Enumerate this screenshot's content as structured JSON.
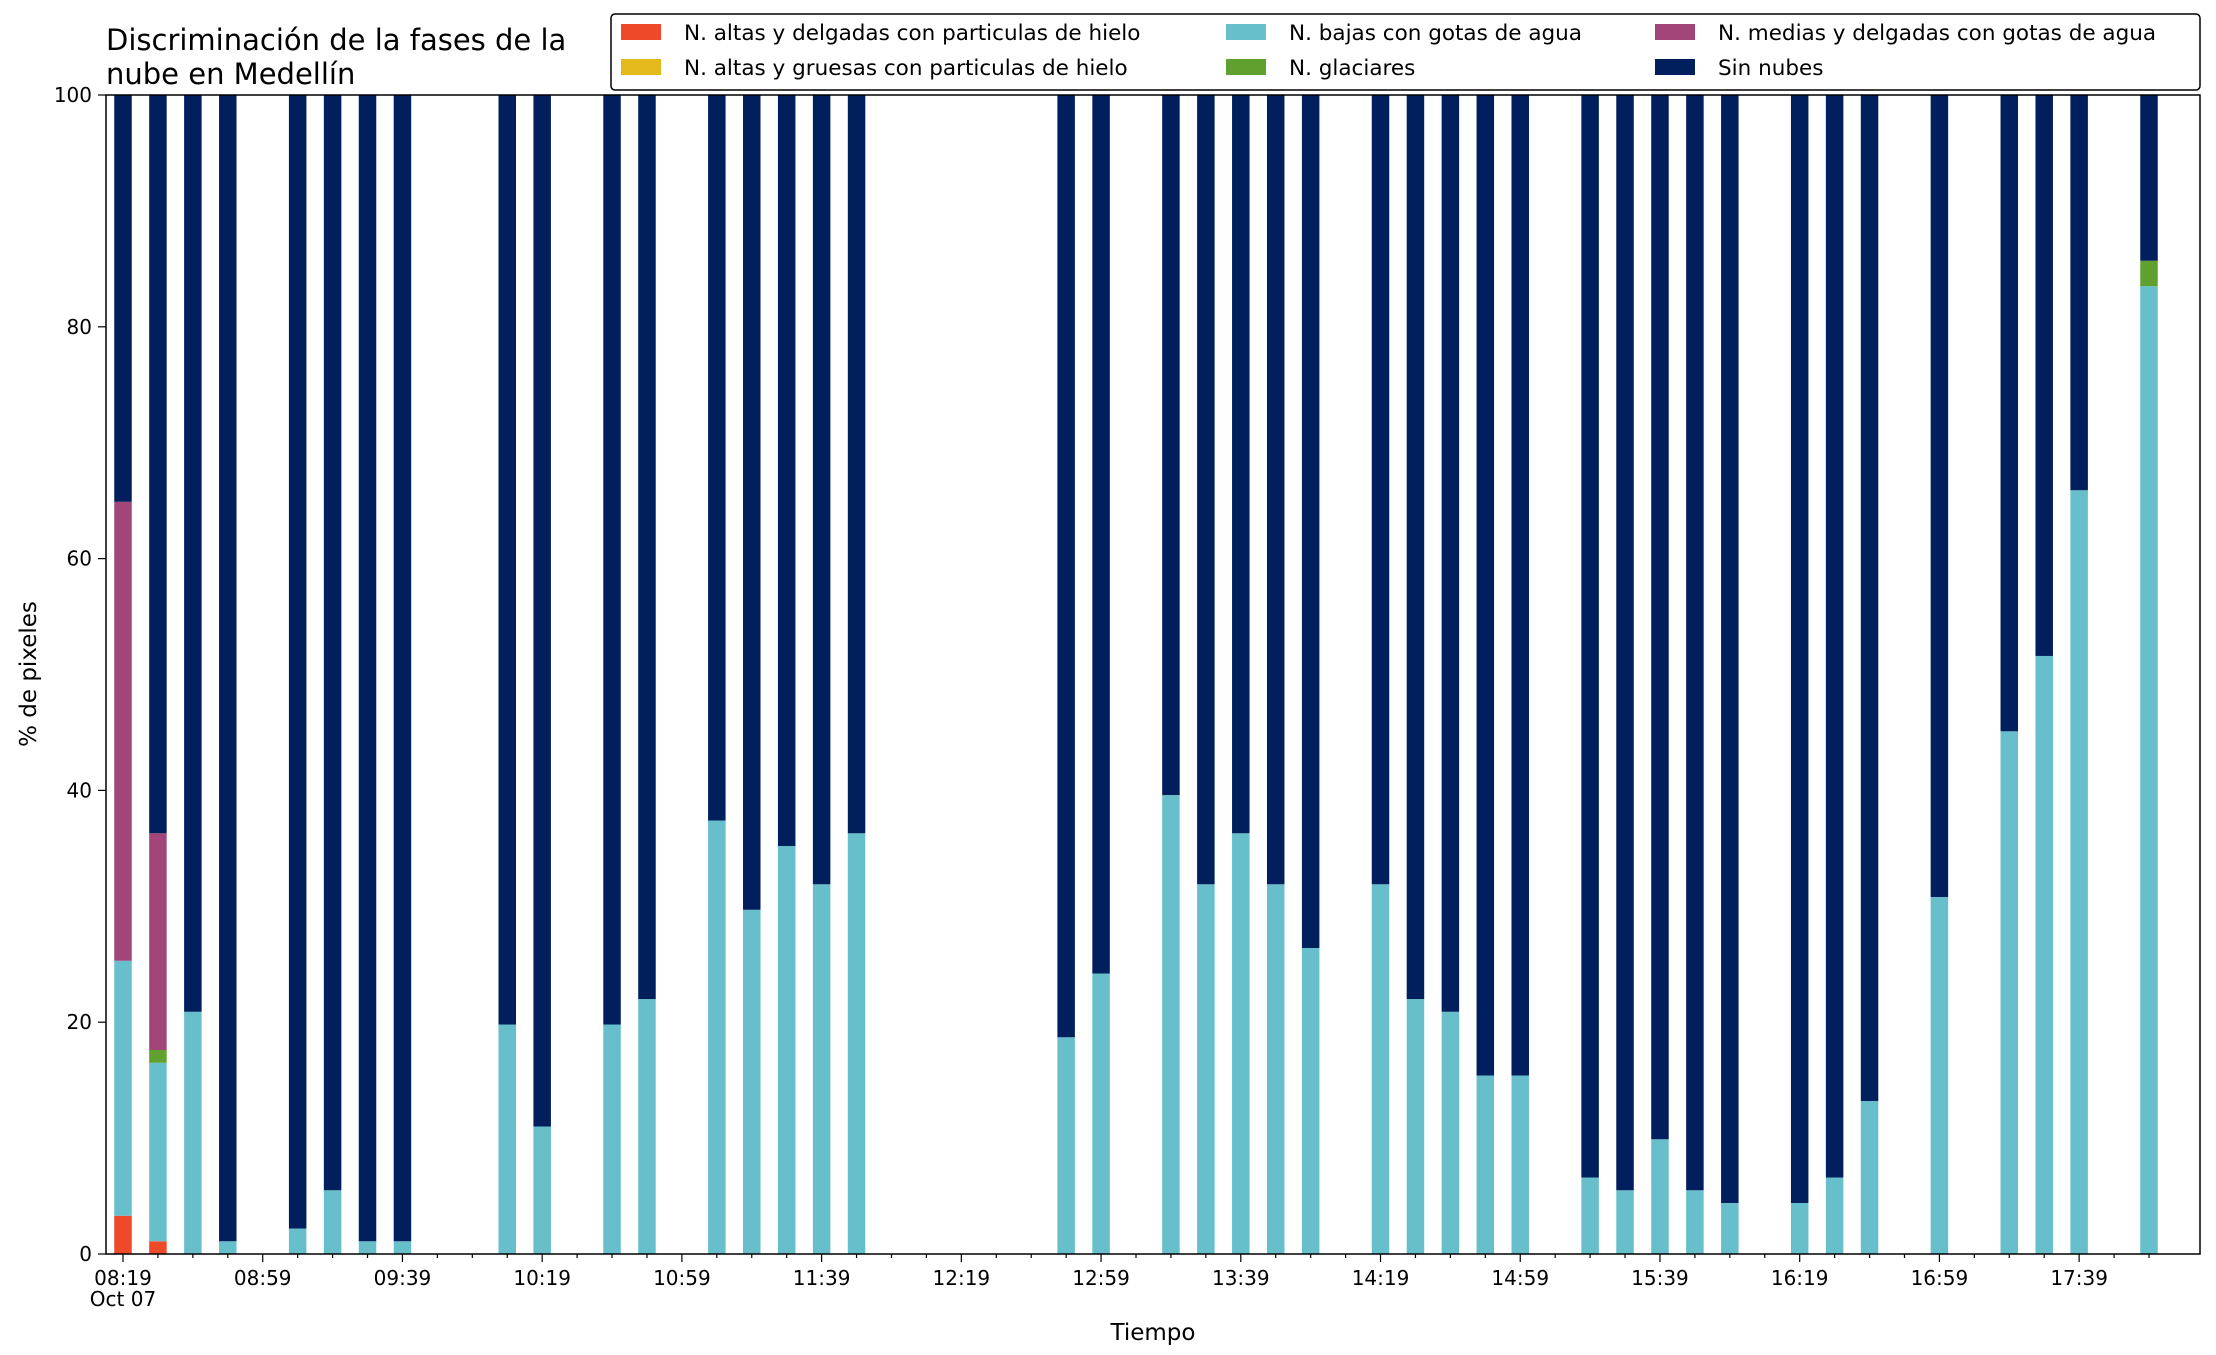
{
  "chart_data": {
    "type": "bar",
    "stacked": true,
    "title_lines": [
      "Discriminación de la fases de la",
      "nube en Medellín"
    ],
    "xlabel": "Tiempo",
    "ylabel": "% de pixeles",
    "ylim": [
      0,
      100
    ],
    "yticks": [
      "0",
      "20",
      "40",
      "60",
      "80",
      "100"
    ],
    "xticks": [
      "08:19",
      "08:59",
      "09:39",
      "10:19",
      "10:59",
      "11:39",
      "12:19",
      "12:59",
      "13:39",
      "14:19",
      "14:59",
      "15:39",
      "16:19",
      "16:59",
      "17:39"
    ],
    "xtick_sublabel": "Oct 07",
    "x_start": "08:19",
    "x_end": "17:59",
    "x_step_minutes": 10,
    "grid": false,
    "legend_position": "top-right",
    "categories": [
      "08:19",
      "08:29",
      "08:39",
      "08:49",
      "08:59",
      "09:09",
      "09:19",
      "09:29",
      "09:39",
      "09:49",
      "09:59",
      "10:09",
      "10:19",
      "10:29",
      "10:39",
      "10:49",
      "10:59",
      "11:09",
      "11:19",
      "11:29",
      "11:39",
      "11:49",
      "11:59",
      "12:09",
      "12:19",
      "12:29",
      "12:39",
      "12:49",
      "12:59",
      "13:09",
      "13:19",
      "13:29",
      "13:39",
      "13:49",
      "13:59",
      "14:09",
      "14:19",
      "14:29",
      "14:39",
      "14:49",
      "14:59",
      "15:09",
      "15:19",
      "15:29",
      "15:39",
      "15:49",
      "15:59",
      "16:09",
      "16:19",
      "16:29",
      "16:39",
      "16:49",
      "16:59",
      "17:09",
      "17:19",
      "17:29",
      "17:39",
      "17:49",
      "17:59"
    ],
    "series": [
      {
        "name": "N. altas y delgadas con particulas de hielo",
        "color": "#ee4a2a",
        "values": [
          3.3,
          1.1,
          0,
          0,
          null,
          0,
          0,
          0,
          0,
          null,
          null,
          0,
          0,
          null,
          0,
          0,
          null,
          0,
          0,
          0,
          0,
          0,
          0,
          null,
          null,
          null,
          null,
          0,
          0,
          null,
          0,
          0,
          0,
          0,
          0,
          null,
          0,
          0,
          0,
          0,
          0,
          null,
          0,
          0,
          0,
          0,
          0,
          null,
          0,
          0,
          0,
          null,
          0,
          null,
          0,
          0,
          0,
          null,
          0
        ]
      },
      {
        "name": "N. altas y gruesas con particulas de hielo",
        "color": "#e4b91b",
        "values": [
          0,
          0,
          0,
          0,
          null,
          0,
          0,
          0,
          0,
          null,
          null,
          0,
          0,
          null,
          0,
          0,
          null,
          0,
          0,
          0,
          0,
          0,
          0,
          null,
          null,
          null,
          null,
          0,
          0,
          null,
          0,
          0,
          0,
          0,
          0,
          null,
          0,
          0,
          0,
          0,
          0,
          null,
          0,
          0,
          0,
          0,
          0,
          null,
          0,
          0,
          0,
          null,
          0,
          null,
          0,
          0,
          0,
          null,
          0
        ]
      },
      {
        "name": "N. bajas con gotas de agua",
        "color": "#67bfcb",
        "values": [
          22.0,
          15.4,
          20.9,
          1.1,
          null,
          2.2,
          5.5,
          1.1,
          1.1,
          null,
          null,
          19.8,
          11.0,
          null,
          19.8,
          22.0,
          null,
          37.4,
          29.7,
          35.2,
          31.9,
          36.3,
          0,
          null,
          null,
          null,
          null,
          18.7,
          24.2,
          null,
          39.6,
          31.9,
          36.3,
          31.9,
          26.4,
          null,
          31.9,
          22.0,
          20.9,
          15.4,
          15.4,
          null,
          6.6,
          5.5,
          9.9,
          5.5,
          4.4,
          null,
          4.4,
          6.6,
          13.2,
          null,
          30.8,
          null,
          45.1,
          51.6,
          65.9,
          null,
          83.5
        ]
      },
      {
        "name": "N. glaciares",
        "color": "#60a02f",
        "values": [
          0,
          1.1,
          0,
          0,
          null,
          0,
          0,
          0,
          0,
          null,
          null,
          0,
          0,
          null,
          0,
          0,
          null,
          0,
          0,
          0,
          0,
          0,
          0,
          null,
          null,
          null,
          null,
          0,
          0,
          null,
          0,
          0,
          0,
          0,
          0,
          null,
          0,
          0,
          0,
          0,
          0,
          null,
          0,
          0,
          0,
          0,
          0,
          null,
          0,
          0,
          0,
          null,
          0,
          null,
          0,
          0,
          0,
          null,
          2.2
        ]
      },
      {
        "name": "N. medias y delgadas con gotas de agua",
        "color": "#a2467a",
        "values": [
          39.6,
          18.7,
          0,
          0,
          null,
          0,
          0,
          0,
          0,
          null,
          null,
          0,
          0,
          null,
          0,
          0,
          null,
          0,
          0,
          0,
          0,
          0,
          0,
          null,
          null,
          null,
          null,
          0,
          0,
          null,
          0,
          0,
          0,
          0,
          0,
          null,
          0,
          0,
          0,
          0,
          0,
          null,
          0,
          0,
          0,
          0,
          0,
          null,
          0,
          0,
          0,
          null,
          0,
          null,
          0,
          0,
          0,
          null,
          0
        ]
      },
      {
        "name": "Sin nubes",
        "color": "#001f5c",
        "values": [
          35.1,
          63.7,
          79.1,
          98.9,
          null,
          97.8,
          94.5,
          98.9,
          98.9,
          null,
          null,
          80.2,
          89.0,
          null,
          80.2,
          78.0,
          null,
          62.6,
          70.3,
          64.8,
          68.1,
          63.7,
          0,
          null,
          null,
          null,
          null,
          81.3,
          75.8,
          null,
          60.4,
          68.1,
          63.7,
          68.1,
          73.6,
          null,
          68.1,
          78.0,
          79.1,
          84.6,
          84.6,
          null,
          93.4,
          94.5,
          90.1,
          94.5,
          95.6,
          null,
          95.6,
          93.4,
          86.8,
          null,
          69.2,
          null,
          54.9,
          48.4,
          34.1,
          null,
          14.3
        ]
      }
    ]
  }
}
